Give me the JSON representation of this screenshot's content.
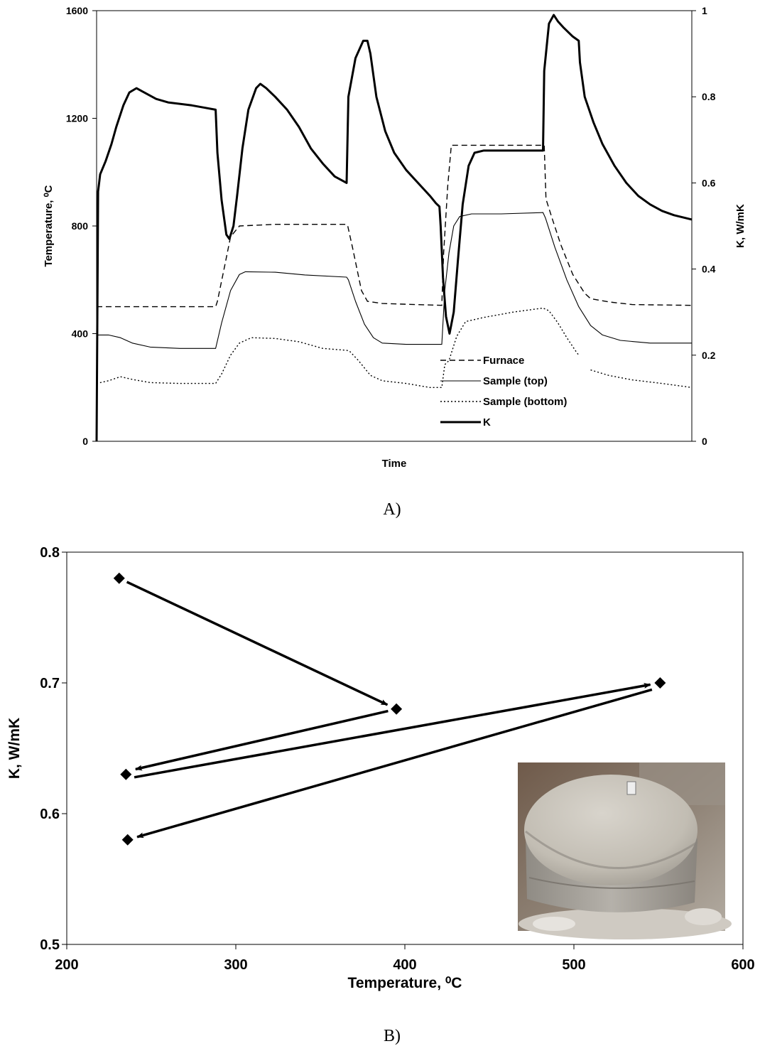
{
  "chart_data": [
    {
      "id": "A",
      "caption": "A)",
      "type": "line",
      "xlabel": "Time",
      "ylabel_left": "Temperature, ⁰C",
      "ylabel_right": "K, W/mK",
      "ylim_left": [
        0,
        1600
      ],
      "yticks_left": [
        "0",
        "400",
        "800",
        "1200",
        "1600"
      ],
      "ylim_right": [
        0,
        1
      ],
      "yticks_right": [
        "0",
        "0.2",
        "0.4",
        "0.6",
        "0.8",
        "1"
      ],
      "xlim": [
        0,
        100
      ],
      "legend_position": "bottom-center",
      "series": [
        {
          "name": "Furnace",
          "axis": "left",
          "style": "dashed",
          "points": [
            [
              0,
              500
            ],
            [
              20,
              500
            ],
            [
              20.3,
              520
            ],
            [
              21.5,
              650
            ],
            [
              22.5,
              760
            ],
            [
              24,
              800
            ],
            [
              30,
              806
            ],
            [
              42,
              806
            ],
            [
              42.2,
              800
            ],
            [
              43,
              720
            ],
            [
              44.5,
              560
            ],
            [
              45.5,
              520
            ],
            [
              48,
              512
            ],
            [
              58,
              505
            ],
            [
              58.3,
              700
            ],
            [
              59,
              950
            ],
            [
              59.6,
              1100
            ],
            [
              75,
              1100
            ],
            [
              75.2,
              1100
            ],
            [
              75.5,
              900
            ],
            [
              76.5,
              830
            ],
            [
              78,
              730
            ],
            [
              80,
              620
            ],
            [
              82,
              550
            ],
            [
              83,
              530
            ],
            [
              86,
              518
            ],
            [
              90,
              508
            ],
            [
              100,
              505
            ]
          ]
        },
        {
          "name": "Sample (top)",
          "axis": "left",
          "style": "solid-thin",
          "points": [
            [
              0,
              395
            ],
            [
              2,
              395
            ],
            [
              4,
              385
            ],
            [
              6,
              365
            ],
            [
              9,
              350
            ],
            [
              14,
              345
            ],
            [
              20,
              345
            ],
            [
              21,
              440
            ],
            [
              22.5,
              560
            ],
            [
              24,
              620
            ],
            [
              25,
              630
            ],
            [
              30,
              628
            ],
            [
              35,
              618
            ],
            [
              42,
              610
            ],
            [
              42.3,
              600
            ],
            [
              43.5,
              520
            ],
            [
              45,
              435
            ],
            [
              46.5,
              385
            ],
            [
              48,
              365
            ],
            [
              52,
              360
            ],
            [
              58,
              360
            ],
            [
              58.5,
              560
            ],
            [
              59.2,
              700
            ],
            [
              60,
              800
            ],
            [
              61,
              835
            ],
            [
              63,
              845
            ],
            [
              68,
              845
            ],
            [
              75,
              850
            ],
            [
              75.4,
              830
            ],
            [
              77,
              720
            ],
            [
              79,
              600
            ],
            [
              81,
              500
            ],
            [
              83,
              430
            ],
            [
              85,
              395
            ],
            [
              88,
              375
            ],
            [
              93,
              365
            ],
            [
              100,
              365
            ]
          ]
        },
        {
          "name": "Sample (bottom)",
          "axis": "left",
          "style": "dotted",
          "points": [
            [
              0,
              215
            ],
            [
              2,
              225
            ],
            [
              4,
              240
            ],
            [
              6,
              230
            ],
            [
              9,
              218
            ],
            [
              14,
              215
            ],
            [
              20,
              215
            ],
            [
              21,
              250
            ],
            [
              22.5,
              320
            ],
            [
              24,
              365
            ],
            [
              26,
              385
            ],
            [
              30,
              382
            ],
            [
              34,
              370
            ],
            [
              38,
              345
            ],
            [
              42,
              338
            ],
            [
              42.5,
              335
            ],
            [
              44,
              300
            ],
            [
              46,
              245
            ],
            [
              48,
              225
            ],
            [
              52,
              215
            ],
            [
              56,
              200
            ],
            [
              58,
              200
            ],
            [
              58.5,
              285
            ],
            [
              59.2,
              300
            ],
            [
              60.5,
              390
            ],
            [
              62,
              445
            ],
            [
              65,
              460
            ],
            [
              70,
              480
            ],
            [
              75,
              495
            ],
            [
              76,
              485
            ],
            [
              77.5,
              440
            ],
            [
              79,
              385
            ],
            [
              80.5,
              335
            ],
            [
              81,
              320
            ]
          ]
        },
        {
          "name": "Sample (bottom) tail",
          "axis": "left",
          "style": "dotted",
          "points": [
            [
              83,
              265
            ],
            [
              86,
              245
            ],
            [
              90,
              228
            ],
            [
              95,
              215
            ],
            [
              100,
              200
            ]
          ]
        },
        {
          "name": "K",
          "axis": "right",
          "style": "solid-thick",
          "points": [
            [
              0,
              0
            ],
            [
              0.25,
              0.58
            ],
            [
              0.6,
              0.62
            ],
            [
              1.5,
              0.65
            ],
            [
              2.5,
              0.69
            ],
            [
              3.3,
              0.73
            ],
            [
              4.5,
              0.78
            ],
            [
              5.5,
              0.81
            ],
            [
              6.7,
              0.82
            ],
            [
              8,
              0.81
            ],
            [
              10,
              0.795
            ],
            [
              12,
              0.787
            ],
            [
              16,
              0.78
            ],
            [
              18,
              0.775
            ],
            [
              20,
              0.77
            ],
            [
              20.3,
              0.67
            ],
            [
              21,
              0.56
            ],
            [
              21.8,
              0.48
            ],
            [
              22.3,
              0.47
            ],
            [
              23,
              0.5
            ],
            [
              23.6,
              0.57
            ],
            [
              24.5,
              0.68
            ],
            [
              25.5,
              0.77
            ],
            [
              26.8,
              0.82
            ],
            [
              27.5,
              0.83
            ],
            [
              28.5,
              0.82
            ],
            [
              30,
              0.8
            ],
            [
              32,
              0.77
            ],
            [
              34,
              0.73
            ],
            [
              36,
              0.68
            ],
            [
              38,
              0.645
            ],
            [
              40,
              0.615
            ],
            [
              42,
              0.6
            ],
            [
              42.3,
              0.8
            ],
            [
              43.5,
              0.89
            ],
            [
              44.8,
              0.93
            ],
            [
              45.5,
              0.93
            ],
            [
              46,
              0.9
            ],
            [
              47,
              0.8
            ],
            [
              48.5,
              0.72
            ],
            [
              50,
              0.67
            ],
            [
              52,
              0.63
            ],
            [
              54,
              0.6
            ],
            [
              56,
              0.57
            ],
            [
              57,
              0.553
            ],
            [
              57.6,
              0.545
            ],
            [
              57.8,
              0.5
            ],
            [
              58.2,
              0.38
            ],
            [
              58.7,
              0.29
            ],
            [
              59.3,
              0.25
            ],
            [
              60,
              0.3
            ],
            [
              60.7,
              0.42
            ],
            [
              61.5,
              0.55
            ],
            [
              62.5,
              0.64
            ],
            [
              63.5,
              0.67
            ],
            [
              65,
              0.675
            ],
            [
              75,
              0.675
            ],
            [
              75.2,
              0.86
            ],
            [
              76,
              0.97
            ],
            [
              76.8,
              0.99
            ],
            [
              77.5,
              0.975
            ],
            [
              78.5,
              0.96
            ],
            [
              80,
              0.94
            ],
            [
              81,
              0.93
            ],
            [
              81.2,
              0.88
            ],
            [
              82,
              0.8
            ],
            [
              83.5,
              0.74
            ],
            [
              85,
              0.69
            ],
            [
              87,
              0.64
            ],
            [
              89,
              0.6
            ],
            [
              91,
              0.57
            ],
            [
              93,
              0.55
            ],
            [
              95,
              0.535
            ],
            [
              97,
              0.525
            ],
            [
              100,
              0.515
            ]
          ]
        }
      ]
    },
    {
      "id": "B",
      "caption": "B)",
      "type": "scatter",
      "xlabel": "Temperature, ⁰C",
      "ylabel": "K, W/mK",
      "xlim": [
        200,
        600
      ],
      "ylim": [
        0.5,
        0.8
      ],
      "xticks": [
        "200",
        "300",
        "400",
        "500",
        "600"
      ],
      "yticks": [
        "0.5",
        "0.6",
        "0.7",
        "0.8"
      ],
      "points": [
        {
          "x": 231,
          "y": 0.78
        },
        {
          "x": 395,
          "y": 0.68
        },
        {
          "x": 235,
          "y": 0.63
        },
        {
          "x": 551,
          "y": 0.7
        },
        {
          "x": 236,
          "y": 0.58
        }
      ],
      "arrows": [
        {
          "from": 0,
          "to": 1
        },
        {
          "from": 1,
          "to": 2
        },
        {
          "from": 2,
          "to": 3
        },
        {
          "from": 3,
          "to": 4
        }
      ],
      "inset_photo": "sample-photo"
    }
  ]
}
